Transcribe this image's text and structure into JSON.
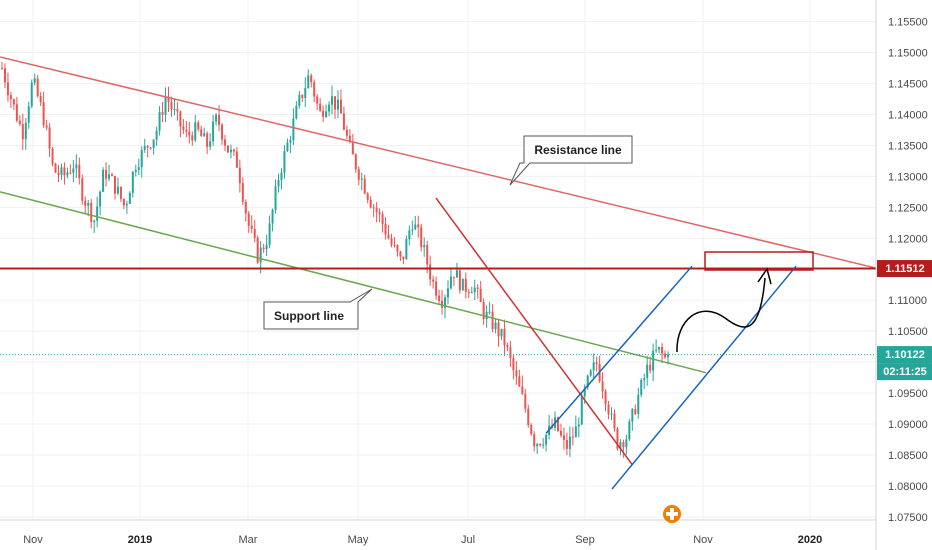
{
  "chart_data": {
    "type": "candlestick",
    "y_ticks": [
      "1.15500",
      "1.15000",
      "1.14500",
      "1.14000",
      "1.13500",
      "1.13000",
      "1.12500",
      "1.12000",
      "1.11500",
      "1.11000",
      "1.10500",
      "1.10000",
      "1.09500",
      "1.09000",
      "1.08500",
      "1.08000",
      "1.07500"
    ],
    "x_ticks": [
      "Nov",
      "2019",
      "Mar",
      "May",
      "Jul",
      "Sep",
      "Nov",
      "2020"
    ],
    "x_ticks_bold": [
      "2019",
      "2020"
    ],
    "ylim": [
      1.0745,
      1.1585
    ],
    "price_path": [
      [
        0,
        1.1475
      ],
      [
        3,
        1.142
      ],
      [
        6,
        1.137
      ],
      [
        9,
        1.1455
      ],
      [
        12,
        1.14
      ],
      [
        15,
        1.131
      ],
      [
        18,
        1.13
      ],
      [
        21,
        1.132
      ],
      [
        24,
        1.1265
      ],
      [
        27,
        1.123
      ],
      [
        30,
        1.131
      ],
      [
        33,
        1.1285
      ],
      [
        36,
        1.125
      ],
      [
        39,
        1.132
      ],
      [
        42,
        1.1345
      ],
      [
        45,
        1.137
      ],
      [
        48,
        1.143
      ],
      [
        51,
        1.1395
      ],
      [
        54,
        1.1365
      ],
      [
        57,
        1.1375
      ],
      [
        60,
        1.135
      ],
      [
        63,
        1.1395
      ],
      [
        66,
        1.1345
      ],
      [
        69,
        1.132
      ],
      [
        72,
        1.1225
      ],
      [
        75,
        1.117
      ],
      [
        78,
        1.1205
      ],
      [
        81,
        1.13
      ],
      [
        84,
        1.136
      ],
      [
        87,
        1.142
      ],
      [
        90,
        1.1465
      ],
      [
        93,
        1.14
      ],
      [
        96,
        1.143
      ],
      [
        99,
        1.1405
      ],
      [
        102,
        1.134
      ],
      [
        105,
        1.13
      ],
      [
        108,
        1.126
      ],
      [
        111,
        1.123
      ],
      [
        114,
        1.119
      ],
      [
        117,
        1.116
      ],
      [
        120,
        1.123
      ],
      [
        123,
        1.119
      ],
      [
        126,
        1.113
      ],
      [
        129,
        1.11
      ],
      [
        132,
        1.115
      ],
      [
        135,
        1.112
      ],
      [
        138,
        1.1125
      ],
      [
        141,
        1.108
      ],
      [
        144,
        1.106
      ],
      [
        147,
        1.1035
      ],
      [
        150,
        1.098
      ],
      [
        153,
        1.093
      ],
      [
        156,
        1.087
      ],
      [
        159,
        1.088
      ],
      [
        162,
        1.09
      ],
      [
        165,
        1.086
      ],
      [
        168,
        1.089
      ],
      [
        171,
        1.096
      ],
      [
        174,
        1.1
      ],
      [
        177,
        1.094
      ],
      [
        180,
        1.087
      ],
      [
        183,
        1.088
      ],
      [
        186,
        1.094
      ],
      [
        189,
        1.099
      ],
      [
        192,
        1.102
      ],
      [
        195,
        1.1
      ]
    ],
    "current_price": 1.10122,
    "price_badge": "1.10122",
    "countdown_badge": "02:11:25",
    "level_price": 1.11512,
    "level_badge": "1.11512",
    "annotations": {
      "resistance_label": "Resistance line",
      "support_label": "Support line"
    }
  },
  "colors": {
    "up_candle": "#26a69a",
    "down_candle": "#ef5350",
    "resistance": "#e06666",
    "support": "#6aa84f",
    "level": "#b71c1c",
    "trend": "#1565c0",
    "price_line": "#26a69a",
    "curve_arrow": "#000000"
  }
}
